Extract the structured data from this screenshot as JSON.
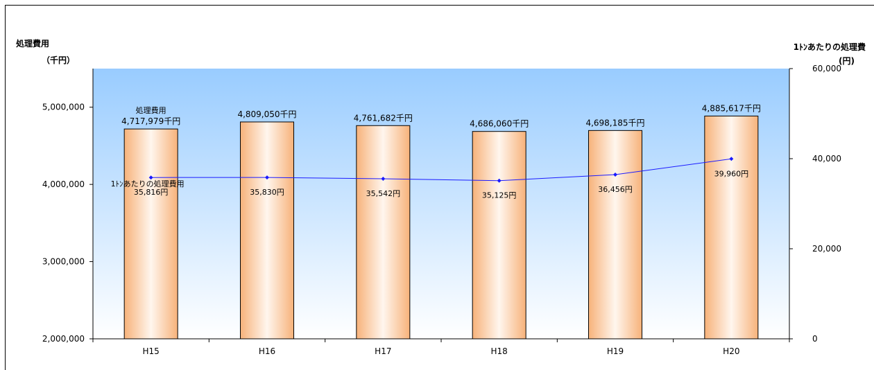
{
  "chart_data": {
    "type": "bar",
    "categories": [
      "H15",
      "H16",
      "H17",
      "H18",
      "H19",
      "H20"
    ],
    "series": [
      {
        "name": "処理費用",
        "type": "bar",
        "axis": "left",
        "values": [
          4717979,
          4809050,
          4761682,
          4686060,
          4698185,
          4885617
        ],
        "labels": [
          "4,717,979千円",
          "4,809,050千円",
          "4,761,682千円",
          "4,686,060千円",
          "4,698,185千円",
          "4,885,617千円"
        ]
      },
      {
        "name": "1ﾄﾝあたりの処理費用",
        "type": "line",
        "axis": "right",
        "values": [
          35816,
          35830,
          35542,
          35125,
          36456,
          39960
        ],
        "labels": [
          "35,816円",
          "35,830円",
          "35,542円",
          "35,125円",
          "36,456円",
          "39,960円"
        ],
        "color": "#1a1aff"
      }
    ],
    "left_axis": {
      "title": "処理費用",
      "unit": "（千円）",
      "ylim": [
        2000000,
        5500000
      ],
      "ticks": [
        "2,000,000",
        "3,000,000",
        "4,000,000",
        "5,000,000"
      ],
      "tick_values": [
        2000000,
        3000000,
        4000000,
        5000000
      ]
    },
    "right_axis": {
      "title": "1ﾄﾝあたりの処理費",
      "unit": "(円)",
      "ylim": [
        0,
        60000
      ],
      "ticks": [
        "0",
        "20,000",
        "40,000",
        "60,000"
      ],
      "tick_values": [
        0,
        20000,
        40000,
        60000
      ]
    },
    "annotations": {
      "bar_series_label": "処理費用",
      "line_series_label": "1ﾄﾝあたりの処理費用"
    },
    "colors": {
      "plot_bg_top": "#99ccff",
      "plot_bg_bottom": "#ffffff",
      "bar_edge": "#f7b27a",
      "bar_center": "#fff6ee",
      "line": "#1a1aff"
    }
  }
}
